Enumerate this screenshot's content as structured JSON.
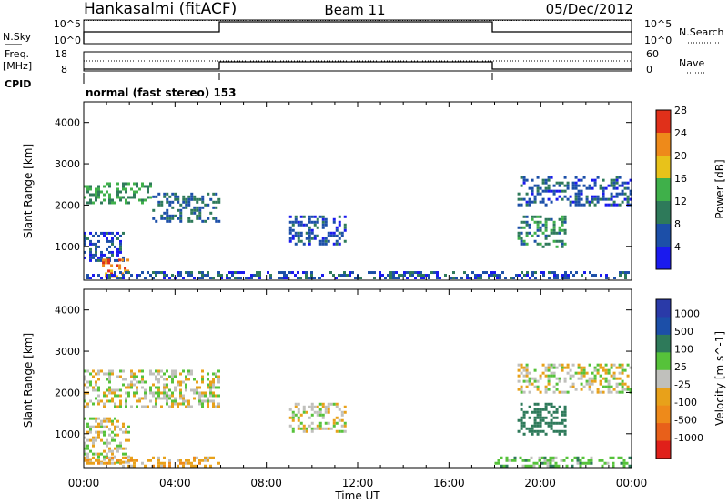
{
  "header": {
    "station": "Hankasalmi (fitACF)",
    "beam": "Beam 11",
    "date": "05/Dec/2012"
  },
  "noise_panel": {
    "left_label": "N.Sky",
    "left_ticks": [
      "10^5",
      "10^0"
    ],
    "right_ticks": [
      "10^5",
      "10^0"
    ],
    "right_label": "N.Search"
  },
  "freq_panel": {
    "left_label_line1": "Freq.",
    "left_label_line2": "[MHz]",
    "left_ticks": [
      "18",
      "8"
    ],
    "right_ticks": [
      "60",
      "0"
    ],
    "right_label": "Nave",
    "cpid_label": "CPID"
  },
  "mode_text": "normal (fast stereo) 153",
  "x_axis": {
    "label": "Time UT",
    "ticks": [
      "00:00",
      "04:00",
      "08:00",
      "12:00",
      "16:00",
      "20:00",
      "00:00"
    ]
  },
  "colors": {
    "power": [
      "#1a1aee",
      "#1c4fa8",
      "#2e7a5a",
      "#3fb04a",
      "#e8c21a",
      "#ee8a1a",
      "#e0301a"
    ],
    "velocity": [
      "#2a3aa8",
      "#1c4fa8",
      "#2e7a5a",
      "#56c23a",
      "#c0c0bc",
      "#e8a11a",
      "#ee8a1a",
      "#e8601a",
      "#e0201a"
    ]
  },
  "chart_data": [
    {
      "type": "heatmap",
      "quantity": "Power",
      "xlabel": "",
      "ylabel": "Slant Range [km]",
      "xlim_hours": [
        0,
        24
      ],
      "ylim_km": [
        180,
        4500
      ],
      "y_ticks": [
        1000,
        2000,
        3000,
        4000
      ],
      "colorbar": {
        "label": "Power [dB]",
        "ticks": [
          "4",
          "8",
          "12",
          "16",
          "20",
          "24",
          "28"
        ]
      },
      "echo_regions": [
        {
          "t0": 0.0,
          "t1": 3.0,
          "r0": 2050,
          "r1": 2550,
          "value": 12
        },
        {
          "t0": 3.0,
          "t1": 6.0,
          "r0": 1600,
          "r1": 2300,
          "value": 8
        },
        {
          "t0": 0.0,
          "t1": 1.8,
          "r0": 650,
          "r1": 1350,
          "value": 6
        },
        {
          "t0": 0.8,
          "t1": 2.0,
          "r0": 250,
          "r1": 700,
          "value": 22
        },
        {
          "t0": 0.0,
          "t1": 24.0,
          "r0": 180,
          "r1": 400,
          "value": 6
        },
        {
          "t0": 9.0,
          "t1": 11.5,
          "r0": 1050,
          "r1": 1750,
          "value": 6
        },
        {
          "t0": 19.0,
          "t1": 21.2,
          "r0": 950,
          "r1": 1750,
          "value": 10
        },
        {
          "t0": 19.0,
          "t1": 24.0,
          "r0": 1950,
          "r1": 2700,
          "value": 6
        }
      ]
    },
    {
      "type": "heatmap",
      "quantity": "Velocity",
      "xlabel": "Time UT",
      "ylabel": "Slant Range [km]",
      "xlim_hours": [
        0,
        24
      ],
      "ylim_km": [
        180,
        4500
      ],
      "y_ticks": [
        1000,
        2000,
        3000,
        4000
      ],
      "colorbar": {
        "label": "Velocity [m s^-1]",
        "ticks": [
          "1000",
          "500",
          "100",
          "25",
          "-25",
          "-100",
          "-500",
          "-1000"
        ]
      },
      "echo_regions": [
        {
          "t0": 0.0,
          "t1": 6.0,
          "r0": 1600,
          "r1": 2550,
          "value": 0
        },
        {
          "t0": 0.0,
          "t1": 2.0,
          "r0": 300,
          "r1": 1400,
          "value": 0
        },
        {
          "t0": 0.0,
          "t1": 6.0,
          "r0": 180,
          "r1": 450,
          "value": -60
        },
        {
          "t0": 9.0,
          "t1": 11.5,
          "r0": 1050,
          "r1": 1750,
          "value": 0
        },
        {
          "t0": 19.0,
          "t1": 21.2,
          "r0": 950,
          "r1": 1750,
          "value": 300
        },
        {
          "t0": 19.0,
          "t1": 24.0,
          "r0": 1950,
          "r1": 2700,
          "value": 0
        },
        {
          "t0": 18.0,
          "t1": 24.0,
          "r0": 180,
          "r1": 450,
          "value": 60
        }
      ]
    }
  ]
}
